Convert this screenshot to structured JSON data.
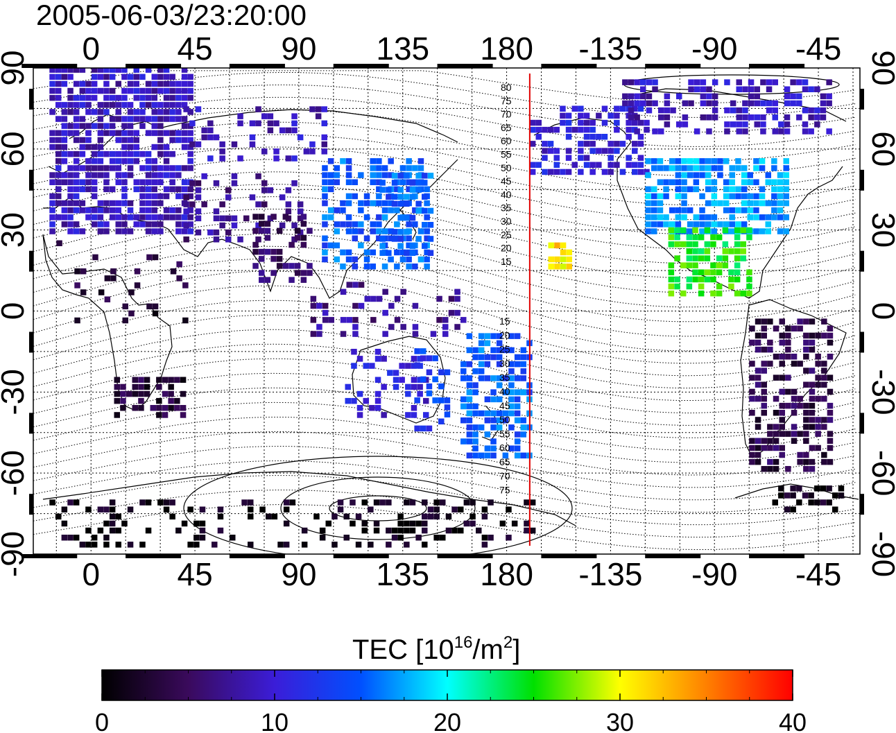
{
  "timestamp": "2005-06-03/23:20:00",
  "lon_ticks": [
    {
      "lon": 0,
      "label": "0"
    },
    {
      "lon": 45,
      "label": "45"
    },
    {
      "lon": 90,
      "label": "90"
    },
    {
      "lon": 135,
      "label": "135"
    },
    {
      "lon": 180,
      "label": "180"
    },
    {
      "lon": 225,
      "label": "-135"
    },
    {
      "lon": 270,
      "label": "-90"
    },
    {
      "lon": 315,
      "label": "-45"
    }
  ],
  "lat_ticks": [
    {
      "lat": 90,
      "label": "90"
    },
    {
      "lat": 60,
      "label": "60"
    },
    {
      "lat": 30,
      "label": "30"
    },
    {
      "lat": 0,
      "label": "0"
    },
    {
      "lat": -30,
      "label": "-30"
    },
    {
      "lat": -60,
      "label": "-60"
    },
    {
      "lat": -90,
      "label": "-90"
    }
  ],
  "lon_range": [
    -25,
    333
  ],
  "lat_range": [
    -90,
    90
  ],
  "grid_step_deg": 15,
  "magnetic_lat_labels": {
    "north": [
      "80",
      "75",
      "70",
      "65",
      "60",
      "55",
      "50",
      "45",
      "40",
      "35",
      "30",
      "25",
      "20",
      "15"
    ],
    "south": [
      "15",
      "20",
      "25",
      "30",
      "35",
      "40",
      "45",
      "50",
      "55",
      "60",
      "65",
      "70",
      "75"
    ]
  },
  "dayside_terminator_lon": 190,
  "colorbar": {
    "title_main": "TEC  [10",
    "title_sup1": "16",
    "title_mid": "/m",
    "title_sup2": "2",
    "title_end": "]",
    "min": 0,
    "max": 40,
    "ticks": [
      {
        "value": 0,
        "label": "0"
      },
      {
        "value": 10,
        "label": "10"
      },
      {
        "value": 20,
        "label": "20"
      },
      {
        "value": 30,
        "label": "30"
      },
      {
        "value": 40,
        "label": "40"
      }
    ]
  },
  "colors": {
    "terminator": "#e00000",
    "stops": [
      "#000000",
      "#3a0a5c",
      "#3b1dd8",
      "#0050ff",
      "#00ffff",
      "#00e000",
      "#ffff00",
      "#ff8000",
      "#ff0000"
    ]
  },
  "tec_regions": [
    {
      "name": "europe",
      "lon": [
        -18,
        42
      ],
      "lat": [
        28,
        88
      ],
      "tec": 9,
      "density": 0.75
    },
    {
      "name": "russia",
      "lon": [
        40,
        100
      ],
      "lat": [
        55,
        75
      ],
      "tec": 9,
      "density": 0.25
    },
    {
      "name": "central-asia",
      "lon": [
        40,
        90
      ],
      "lat": [
        25,
        50
      ],
      "tec": 7,
      "density": 0.3
    },
    {
      "name": "india",
      "lon": [
        70,
        95
      ],
      "lat": [
        10,
        35
      ],
      "tec": 5,
      "density": 0.35
    },
    {
      "name": "east-asia",
      "lon": [
        100,
        145
      ],
      "lat": [
        15,
        55
      ],
      "tec": 15,
      "density": 0.55
    },
    {
      "name": "japan",
      "lon": [
        125,
        148
      ],
      "lat": [
        20,
        50
      ],
      "tec": 15,
      "density": 0.5
    },
    {
      "name": "indonesia",
      "lon": [
        95,
        160
      ],
      "lat": [
        -10,
        10
      ],
      "tec": 7,
      "density": 0.25
    },
    {
      "name": "australia-west",
      "lon": [
        110,
        145
      ],
      "lat": [
        -40,
        -15
      ],
      "tec": 10,
      "density": 0.35
    },
    {
      "name": "australia-east",
      "lon": [
        140,
        155
      ],
      "lat": [
        -45,
        -15
      ],
      "tec": 13,
      "density": 0.5
    },
    {
      "name": "new-zealand",
      "lon": [
        160,
        190
      ],
      "lat": [
        -55,
        -10
      ],
      "tec": 15,
      "density": 0.55
    },
    {
      "name": "africa-north",
      "lon": [
        -15,
        40
      ],
      "lat": [
        -5,
        25
      ],
      "tec": 3,
      "density": 0.12
    },
    {
      "name": "africa-south",
      "lon": [
        10,
        40
      ],
      "lat": [
        -40,
        -25
      ],
      "tec": 3,
      "density": 0.6
    },
    {
      "name": "alaska",
      "lon": [
        190,
        240
      ],
      "lat": [
        50,
        75
      ],
      "tec": 10,
      "density": 0.5
    },
    {
      "name": "canada-arctic",
      "lon": [
        230,
        320
      ],
      "lat": [
        65,
        85
      ],
      "tec": 9,
      "density": 0.5
    },
    {
      "name": "north-america",
      "lon": [
        240,
        300
      ],
      "lat": [
        28,
        55
      ],
      "tec": 17,
      "density": 0.7
    },
    {
      "name": "mexico",
      "lon": [
        250,
        285
      ],
      "lat": [
        5,
        30
      ],
      "tec": 25,
      "density": 0.6
    },
    {
      "name": "hawaii",
      "lon": [
        198,
        208
      ],
      "lat": [
        15,
        25
      ],
      "tec": 31,
      "density": 0.8
    },
    {
      "name": "south-america",
      "lon": [
        285,
        320
      ],
      "lat": [
        -60,
        -5
      ],
      "tec": 4,
      "density": 0.55
    },
    {
      "name": "antarctica",
      "lon": [
        -18,
        190
      ],
      "lat": [
        -88,
        -72
      ],
      "tec": 1,
      "density": 0.25
    },
    {
      "name": "antarctica-peninsula",
      "lon": [
        295,
        325
      ],
      "lat": [
        -75,
        -65
      ],
      "tec": 1,
      "density": 0.5
    }
  ]
}
